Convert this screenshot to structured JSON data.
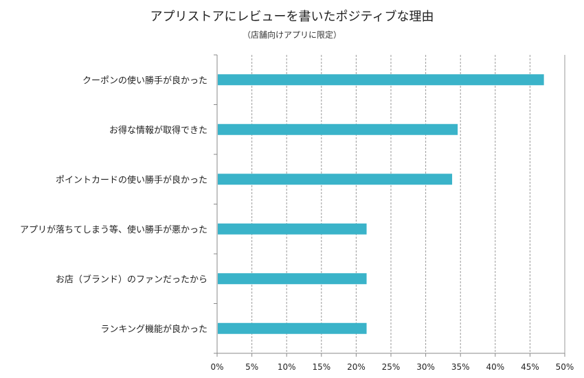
{
  "chart_data": {
    "type": "bar",
    "orientation": "horizontal",
    "title": "アプリストアにレビューを書いたポジティブな理由",
    "subtitle": "（店舗向けアプリに限定）",
    "categories": [
      "クーポンの使い勝手が良かった",
      "お得な情報が取得できた",
      "ポイントカードの使い勝手が良かった",
      "アプリが落ちてしまう等、使い勝手が悪かった",
      "お店（ブランド）のファンだったから",
      "ランキング機能が良かった"
    ],
    "values": [
      47.0,
      34.6,
      33.8,
      21.5,
      21.5,
      21.5
    ],
    "xlim": [
      0,
      50
    ],
    "xticks": [
      "0%",
      "5%",
      "10%",
      "15%",
      "20%",
      "25%",
      "30%",
      "35%",
      "40%",
      "45%",
      "50%"
    ],
    "grid": "vertical-dashed",
    "bar_color": "#3ab3c9"
  }
}
